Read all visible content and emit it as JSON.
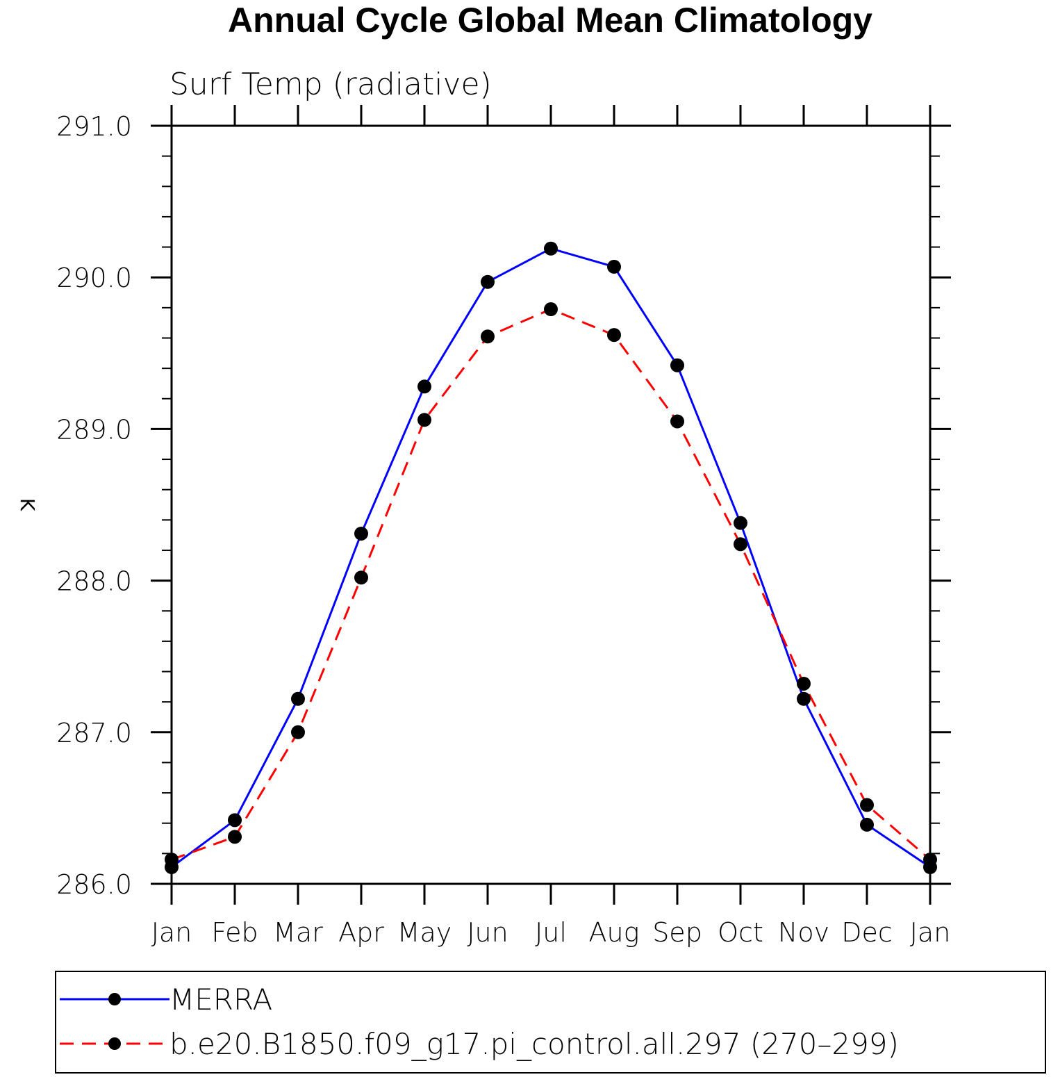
{
  "chart_data": {
    "type": "line",
    "title": "Annual Cycle Global Mean Climatology",
    "subtitle": "Surf Temp (radiative)",
    "ylabel": "K",
    "xlabel": "",
    "categories": [
      "Jan",
      "Feb",
      "Mar",
      "Apr",
      "May",
      "Jun",
      "Jul",
      "Aug",
      "Sep",
      "Oct",
      "Nov",
      "Dec",
      "Jan"
    ],
    "ylim": [
      286.0,
      291.0
    ],
    "yticks": [
      "286.0",
      "287.0",
      "288.0",
      "289.0",
      "290.0",
      "291.0"
    ],
    "series": [
      {
        "name": "MERRA",
        "color": "#0000ff",
        "dash": "solid",
        "values": [
          286.11,
          286.42,
          287.22,
          288.31,
          289.28,
          289.97,
          290.19,
          290.07,
          289.42,
          288.38,
          287.22,
          286.39,
          286.11
        ]
      },
      {
        "name": "b.e20.B1850.f09_g17.pi_control.all.297 (270–299)",
        "color": "#ff0000",
        "dash": "dashed",
        "values": [
          286.16,
          286.31,
          287.0,
          288.02,
          289.06,
          289.61,
          289.79,
          289.62,
          289.05,
          288.24,
          287.32,
          286.52,
          286.16
        ]
      }
    ],
    "grid": false,
    "legend": "bottom"
  }
}
